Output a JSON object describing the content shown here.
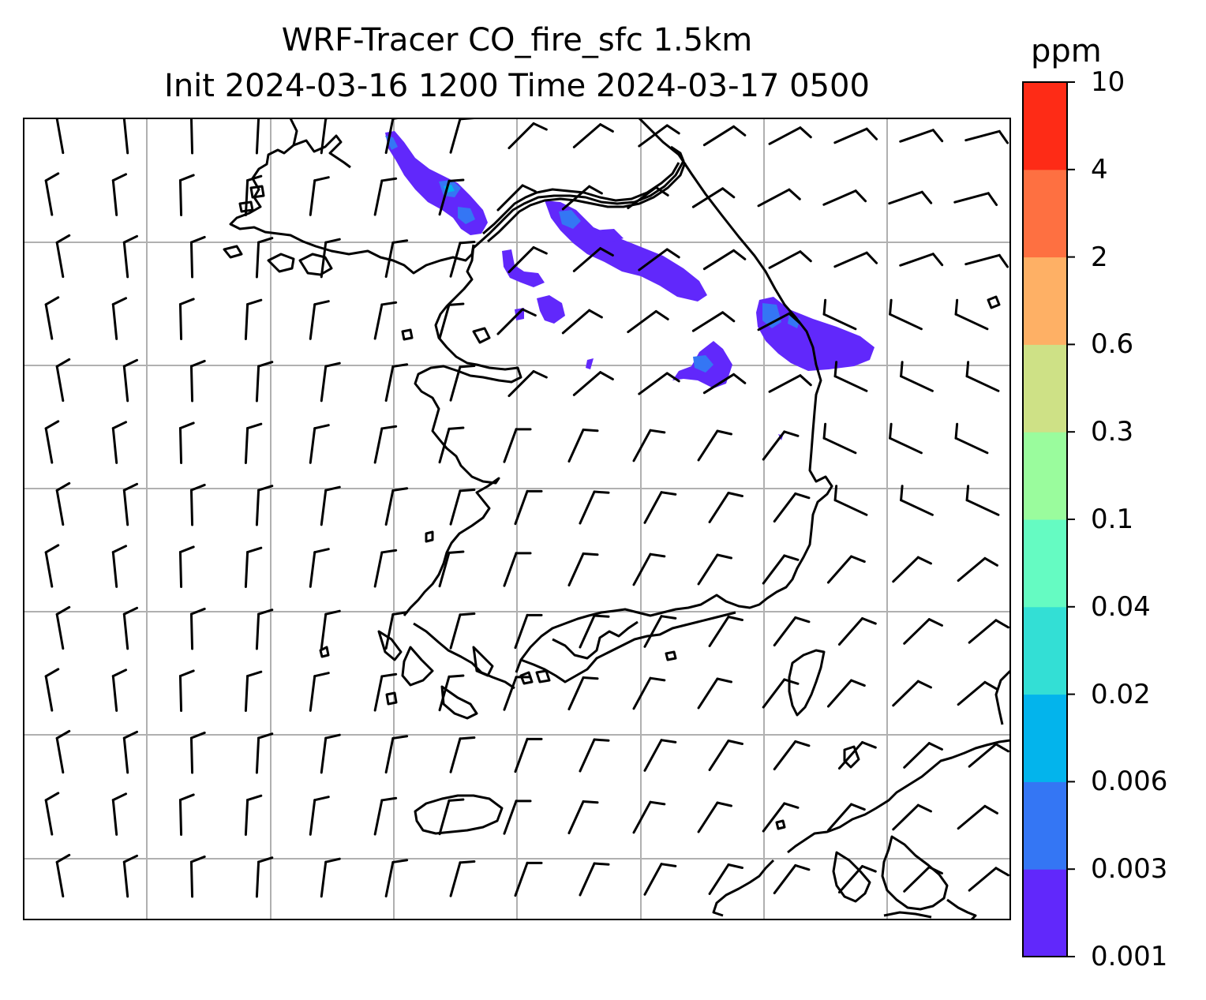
{
  "title": {
    "line1": "WRF-Tracer CO_fire_sfc 1.5km",
    "line2": "Init 2024-03-16 1200 Time 2024-03-17 0500"
  },
  "colorbar": {
    "unit": "ppm",
    "levels": [
      "0.001",
      "0.003",
      "0.006",
      "0.02",
      "0.04",
      "0.1",
      "0.3",
      "0.6",
      "2",
      "4",
      "10"
    ],
    "colors": [
      "#6128fb",
      "#3476f4",
      "#03b4ec",
      "#33dfd5",
      "#65fbc2",
      "#9afc9d",
      "#cee186",
      "#feb065",
      "#fe7041",
      "#fe2b16"
    ]
  },
  "map": {
    "frame_color": "#000000",
    "gridline_color": "#b0b0b0",
    "plume_colors": {
      "low": "#6128fb",
      "mid": "#3476f4",
      "high": "#03b4ec"
    },
    "wind_barbs": "shown",
    "coastlines": "shown"
  }
}
